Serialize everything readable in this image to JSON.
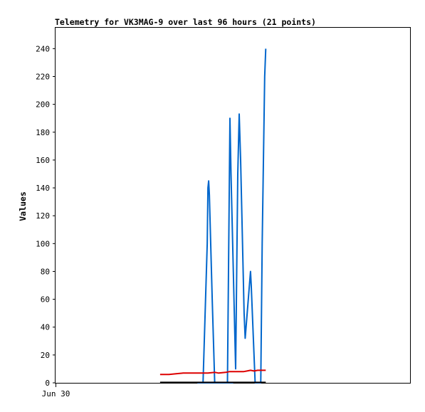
{
  "chart_data": {
    "type": "line",
    "title": "Telemetry for VK3MAG-9 over last 96 hours (21 points)",
    "ylabel": "Values",
    "xlabel": "",
    "ylim": [
      0,
      255
    ],
    "yticks": [
      0,
      20,
      40,
      60,
      80,
      100,
      120,
      140,
      160,
      180,
      200,
      220,
      240
    ],
    "xticks": [
      "Jun 30"
    ],
    "grid": false,
    "x_domain": [
      0,
      100
    ],
    "series": [
      {
        "color": "#0066cc",
        "points": [
          [
            40.0,
            0
          ],
          [
            41.0,
            0
          ],
          [
            42.0,
            0
          ],
          [
            43.0,
            0
          ],
          [
            44.0,
            0
          ],
          [
            45.0,
            0
          ],
          [
            46.0,
            0
          ],
          [
            47.0,
            0
          ],
          [
            48.0,
            0
          ],
          [
            49.0,
            0
          ],
          [
            50.0,
            0
          ],
          [
            41.6,
            0
          ],
          [
            42.8,
            100
          ],
          [
            43.0,
            140
          ],
          [
            43.2,
            145
          ],
          [
            43.4,
            135
          ],
          [
            44.2,
            60
          ],
          [
            44.9,
            0
          ],
          [
            48.5,
            0
          ],
          [
            49.2,
            190
          ],
          [
            49.5,
            150
          ],
          [
            50.8,
            10
          ],
          [
            51.4,
            150
          ],
          [
            51.8,
            193
          ],
          [
            52.2,
            160
          ],
          [
            53.2,
            50
          ],
          [
            53.5,
            32
          ],
          [
            55.0,
            80
          ],
          [
            55.2,
            70
          ],
          [
            56.3,
            0
          ],
          [
            57.9,
            0
          ],
          [
            58.3,
            100
          ],
          [
            59.0,
            220
          ],
          [
            59.3,
            240
          ]
        ]
      },
      {
        "color": "#dd0000",
        "points": [
          [
            29.5,
            6
          ],
          [
            32,
            6
          ],
          [
            34,
            6.5
          ],
          [
            36,
            7
          ],
          [
            40,
            7
          ],
          [
            43,
            7
          ],
          [
            45,
            7.5
          ],
          [
            46,
            7
          ],
          [
            48,
            7.5
          ],
          [
            49,
            8
          ],
          [
            52,
            8
          ],
          [
            53,
            8
          ],
          [
            54,
            8.5
          ],
          [
            55,
            9
          ],
          [
            56,
            8.5
          ],
          [
            57,
            9
          ],
          [
            59,
            9
          ],
          [
            59.3,
            9
          ]
        ]
      },
      {
        "color": "#000000",
        "points": [
          [
            29.5,
            0.3
          ],
          [
            59.3,
            0.3
          ]
        ]
      }
    ]
  }
}
